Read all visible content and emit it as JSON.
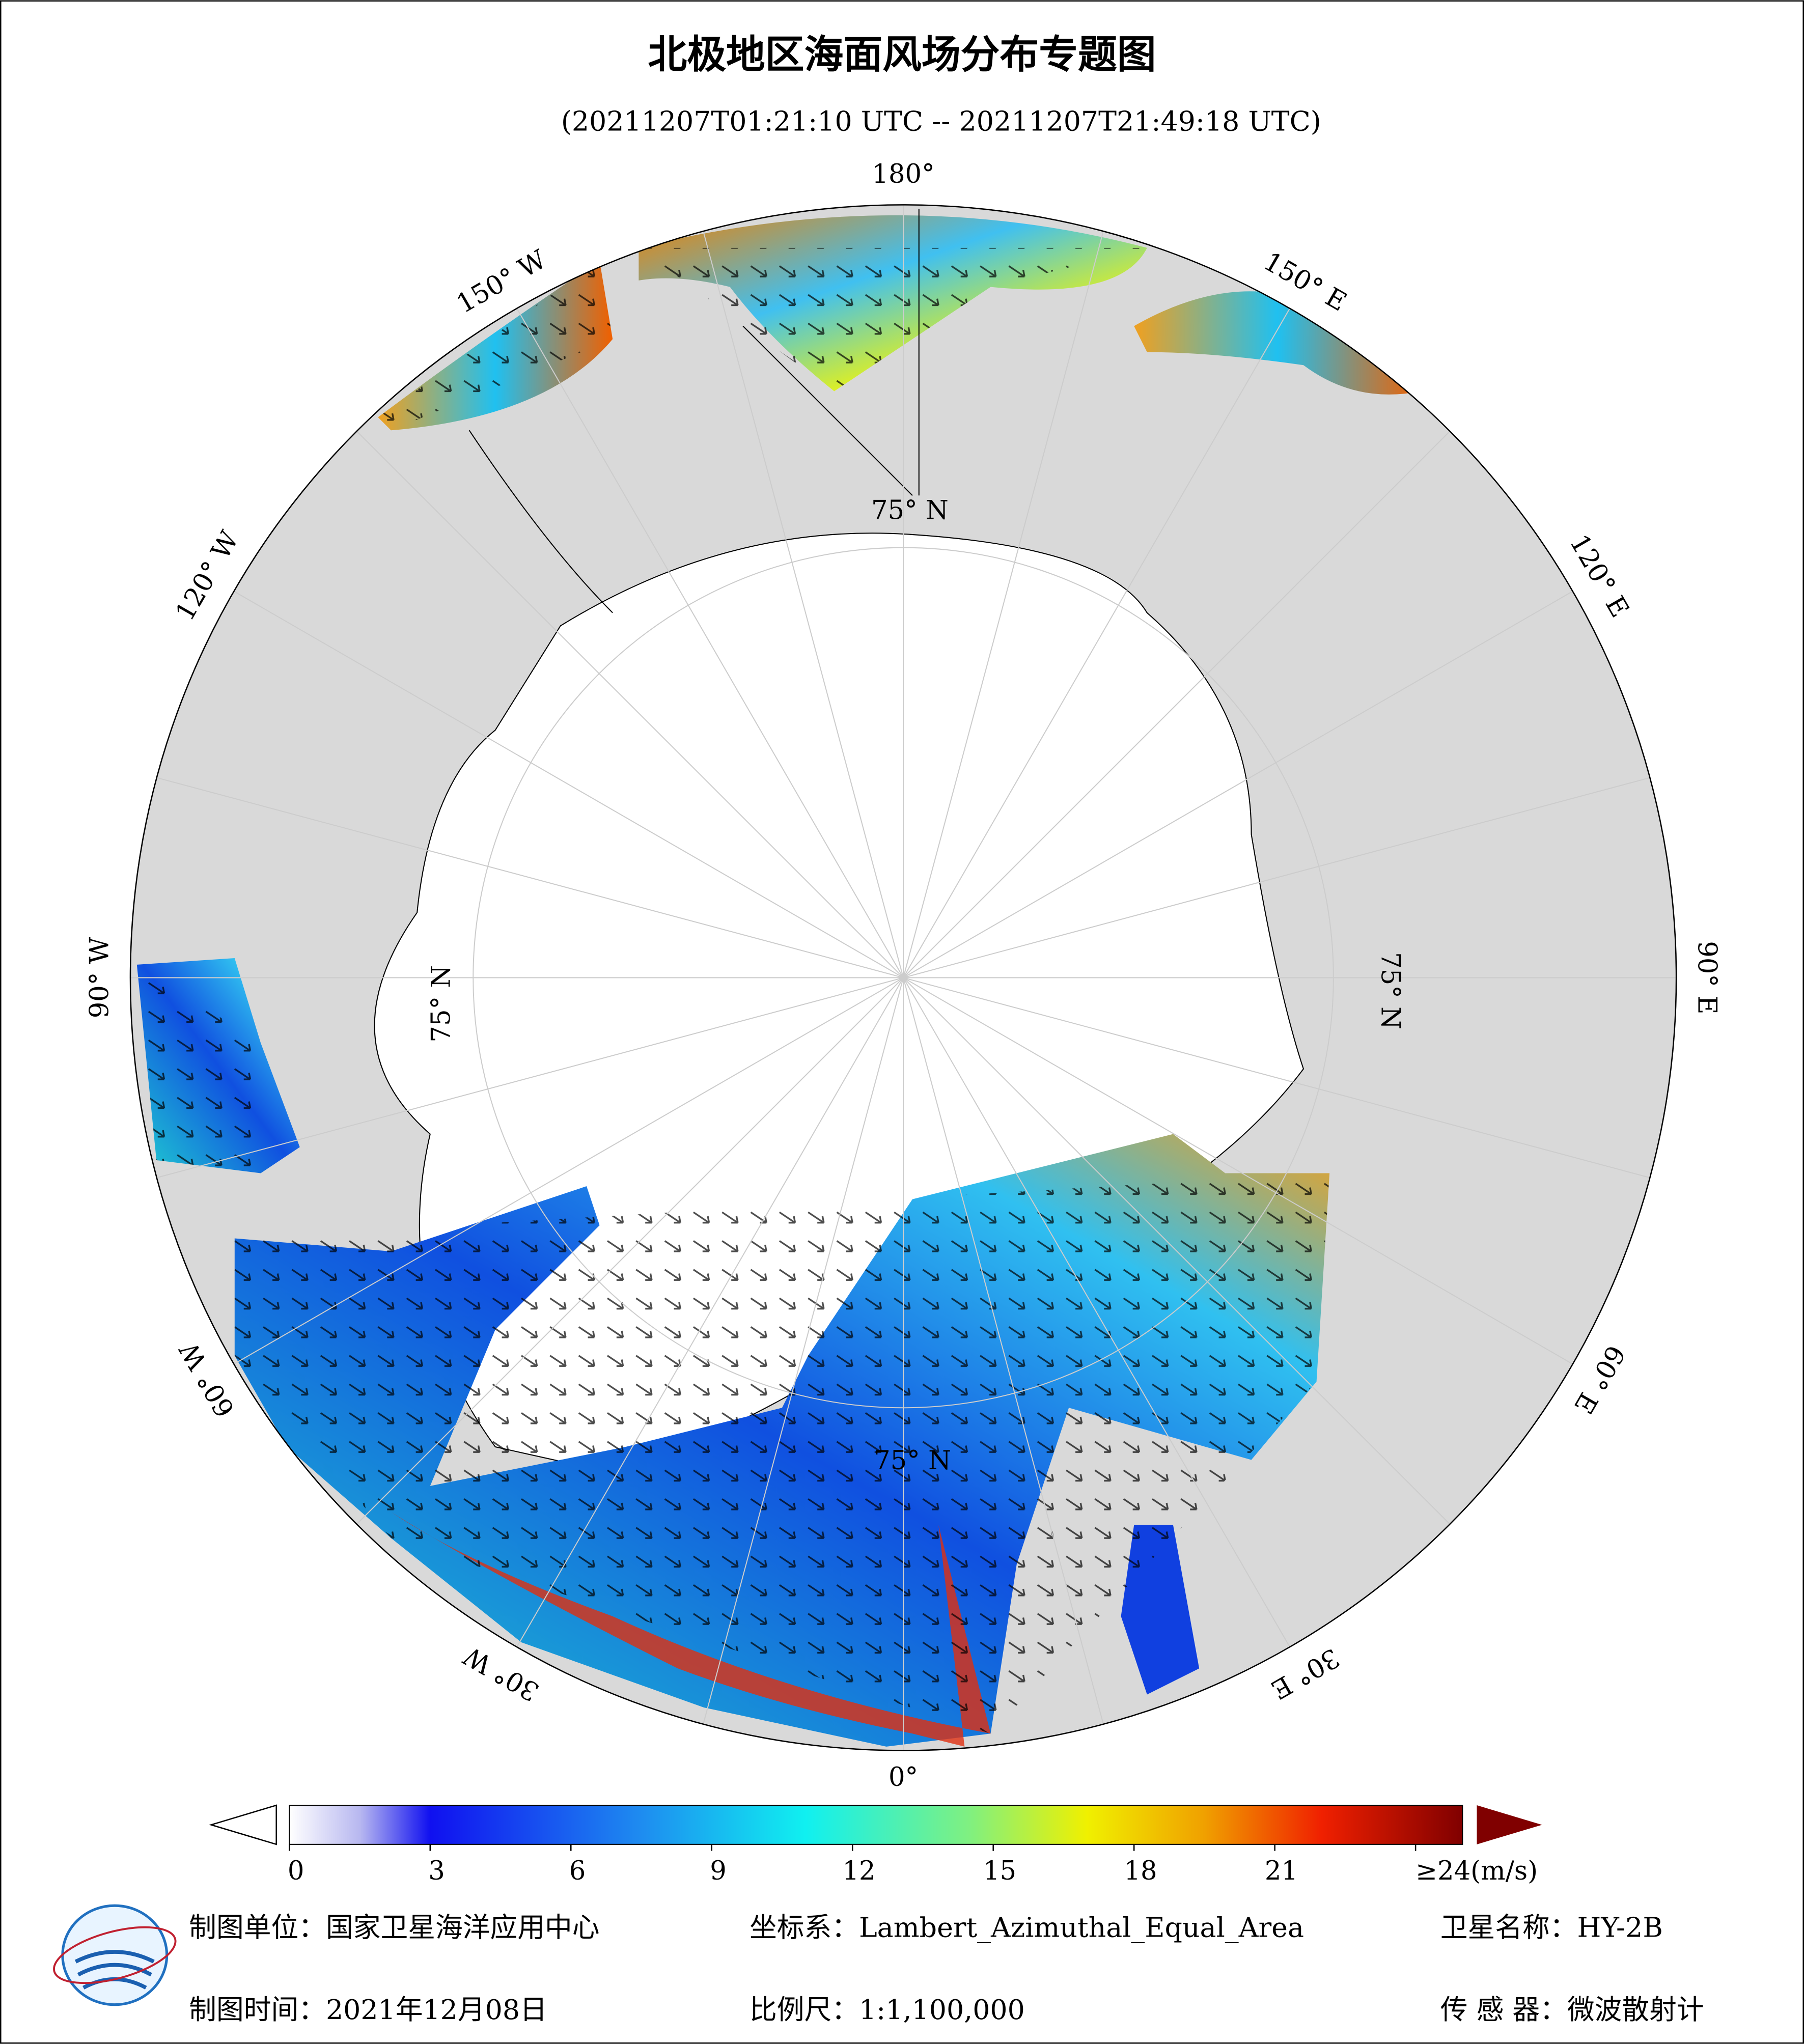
{
  "header": {
    "title": "北极地区海面风场分布专题图",
    "subtitle": "(20211207T01:21:10 UTC -- 20211207T21:49:18 UTC)"
  },
  "map": {
    "longitude_labels": [
      "180°",
      "150° W",
      "120° W",
      "90° W",
      "60° W",
      "30° W",
      "0°",
      "30° E",
      "60° E",
      "90° E",
      "120° E",
      "150° E"
    ],
    "latitude_labels": [
      "75° N",
      "75° N",
      "75° N",
      "75° N"
    ]
  },
  "colorbar": {
    "range": [
      0,
      25
    ],
    "ticks": [
      0,
      3,
      6,
      9,
      12,
      15,
      18,
      21,
      {
        "value": 24,
        "label": "≥24(m/s)"
      }
    ]
  },
  "footer": {
    "unit": "制图单位：国家卫星海洋应用中心",
    "projection": "坐标系：Lambert_Azimuthal_Equal_Area",
    "satellite": "卫星名称：HY-2B",
    "date": "制图时间：2021年12月08日",
    "scale": "比例尺：1:1,100,000",
    "sensor": "传 感 器：微波散射计"
  }
}
